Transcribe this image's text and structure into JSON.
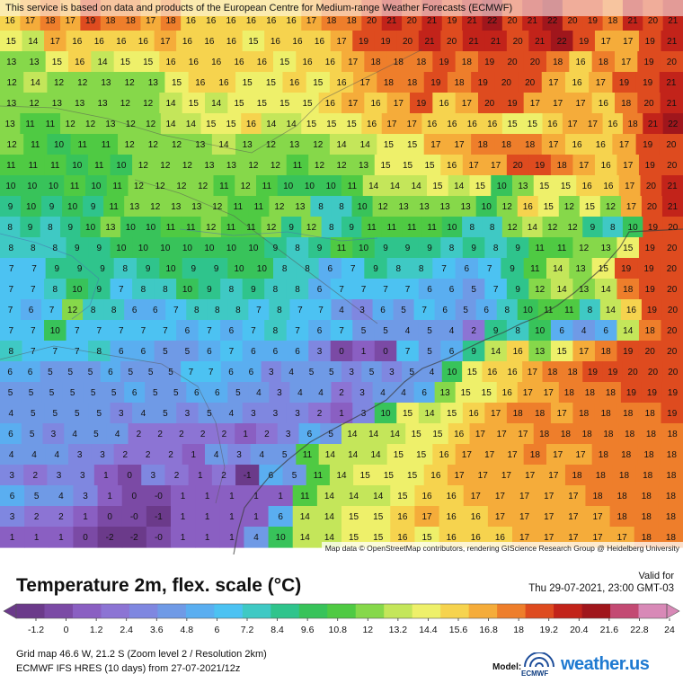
{
  "map": {
    "attribution_top": "This service is based on data and products of the European Centre for Medium-range Weather Forecasts (ECMWF)",
    "attribution_bottom": "Map data © OpenStreetMap contributors, rendering GIScience Research Group @ Heidelberg University",
    "grid_rows": [
      "16 17 18 17 19 18 18 17 18 16 16 16 16 16 16 17 18 18 20 21 20 21 19 21 22 20 21 22 20 19 18 21 20 21",
      "15 14 17 16 16 16 16 17 16 16 16 15 16 16 16 17 19 19 20 21 20 21 21 20 21 22 19 17 17 19 21",
      "13 13 15 16 14 15 15 16 16 16 16 16 15 16 16 17 18 18 18 19 18 19 20 20 18 16 18 17 19 20",
      "12 14 12 12 13 12 13 15 16 16 15 15 16 15 16 17 18 18 19 18 19 20 20 17 16 17 19 19 21",
      "13 12 13 13 13 12 12 14 15 14 15 15 15 15 16 17 16 17 19 16 17 20 19 17 17 17 16 18 20 21",
      "13 11 11 12 12 13 12 12 14 14 15 15 16 14 14 15 15 15 16 17 17 16 16 16 16 15 15 16 17 17 16 18 21 22",
      "12 11 10 11 11 12 12 12 13 14 13 12 13 12 14 14 15 15 17 17 18 18 18 17 16 16 17 19 20",
      "11 11 11 10 11 10 12 12 12 13 13 12 12 11 12 12 13 15 15 15 16 17 17 20 19 18 17 16 17 19 20",
      "10 10 10 11 10 11 12 12 12 12 11 12 11 10 10 10 11 14 14 14 15 14 15 10 13 15 15 16 16 17 20 21",
      "9 10 9 10 9 11 13 12 13 13 12 11 11 12 13 8 8 10 12 13 13 13 13 10 12 16 15 12 15 12 17 20 21",
      "8 9 8 9 10 13 10 10 11 11 12 11 11 12 9 12 8 9 11 11 11 11 10 8 8 12 14 12 12 9 8 10 19 20",
      "8 8 8 9 9 10 10 10 10 10 10 10 9 8 9 11 10 9 9 9 8 9 8 9 11 11 12 13 15 19 20",
      "7 7 9 9 9 8 9 10 9 9 10 10 8 8 6 7 9 8 8 7 6 7 9 11 14 13 15 19 19 20",
      "7 7 8 10 9 7 8 8 10 9 8 9 8 8 6 7 7 7 7 6 6 5 7 9 12 14 13 14 18 19 20",
      "7 6 7 12 8 8 6 6 7 8 8 8 7 8 7 7 4 3 6 5 7 6 5 6 8 10 11 11 8 14 16 19 20",
      "7 7 10 7 7 7 7 7 6 7 6 7 8 7 6 7 5 5 4 5 4 2 9 8 10 6 4 6 14 18 20",
      "8 7 7 7 8 6 6 5 5 6 7 6 6 6 3 0 1 0 7 5 6 9 14 16 13 15 17 18 19 20 20",
      "6 6 5 5 5 6 5 5 5 7 7 6 6 3 4 5 5 3 5 3 5 4 10 15 16 16 17 18 18 19 19 20 20 20",
      "5 5 5 5 5 5 6 5 5 6 6 5 4 3 4 4 2 3 4 4 6 13 15 15 16 17 17 18 18 18 19 19 19",
      "4 5 5 5 5 3 4 5 3 5 4 3 3 3 2 1 3 10 15 14 15 16 17 18 18 17 18 18 18 18 19",
      "6 5 3 4 5 4 2 2 2 2 2 1 2 3 6 5 14 14 14 15 15 16 17 17 17 18 18 18 18 18 18 18",
      "4 4 4 3 3 2 2 2 1 4 3 4 5 11 14 14 14 15 15 16 17 17 17 18 17 17 18 18 18 18",
      "3 2 3 3 1 0 3 2 1 2 -1 6 5 11 14 15 15 15 16 17 17 17 17 17 18 18 18 18 18",
      "6 5 4 3 1 0 -0 1 1 1 1 1 11 14 14 14 15 16 16 17 17 17 17 17 18 18 18 18",
      "3 2 2 1 0 -0 -1 1 1 1 1 6 14 14 15 15 16 17 16 16 17 17 17 17 17 18 18 18",
      "1 1 1 0 -2 -2 -0 1 1 1 4 10 14 14 15 15 16 15 16 16 16 17 17 17 17 17 18 18"
    ]
  },
  "legend": {
    "title": "Temperature 2m, flex. scale (°C)",
    "valid_label": "Valid for",
    "valid_time": "Thu 29-07-2021, 23:00 GMT-03",
    "ticks": [
      "-1.2",
      "0",
      "1.2",
      "2.4",
      "3.6",
      "4.8",
      "6",
      "7.2",
      "8.4",
      "9.6",
      "10.8",
      "12",
      "13.2",
      "14.4",
      "15.6",
      "16.8",
      "18",
      "19.2",
      "20.4",
      "21.6",
      "22.8",
      "24"
    ],
    "colors": [
      "#6b3a8a",
      "#7b4aa5",
      "#8a5fc2",
      "#8c74d4",
      "#7f87e0",
      "#6f9ae6",
      "#5aaef0",
      "#4cc2f2",
      "#3fc9c4",
      "#2fc48c",
      "#38c35a",
      "#4fca43",
      "#86d84a",
      "#c4e65a",
      "#eef06a",
      "#f6d34e",
      "#f5ac3a",
      "#ee7e2b",
      "#de4b1f",
      "#c2231a",
      "#a0161c",
      "#c34a73",
      "#d889b7"
    ]
  },
  "info": {
    "grid_line": "Grid map 46.6 W, 21.2 S (Zoom level 2 / Resolution 2km)",
    "model_line": "ECMWF IFS HRES (10 days) from 27-07-2021/12z",
    "model_label": "Model:",
    "ecmwf": "ECMWF",
    "brand": "weather.us"
  }
}
